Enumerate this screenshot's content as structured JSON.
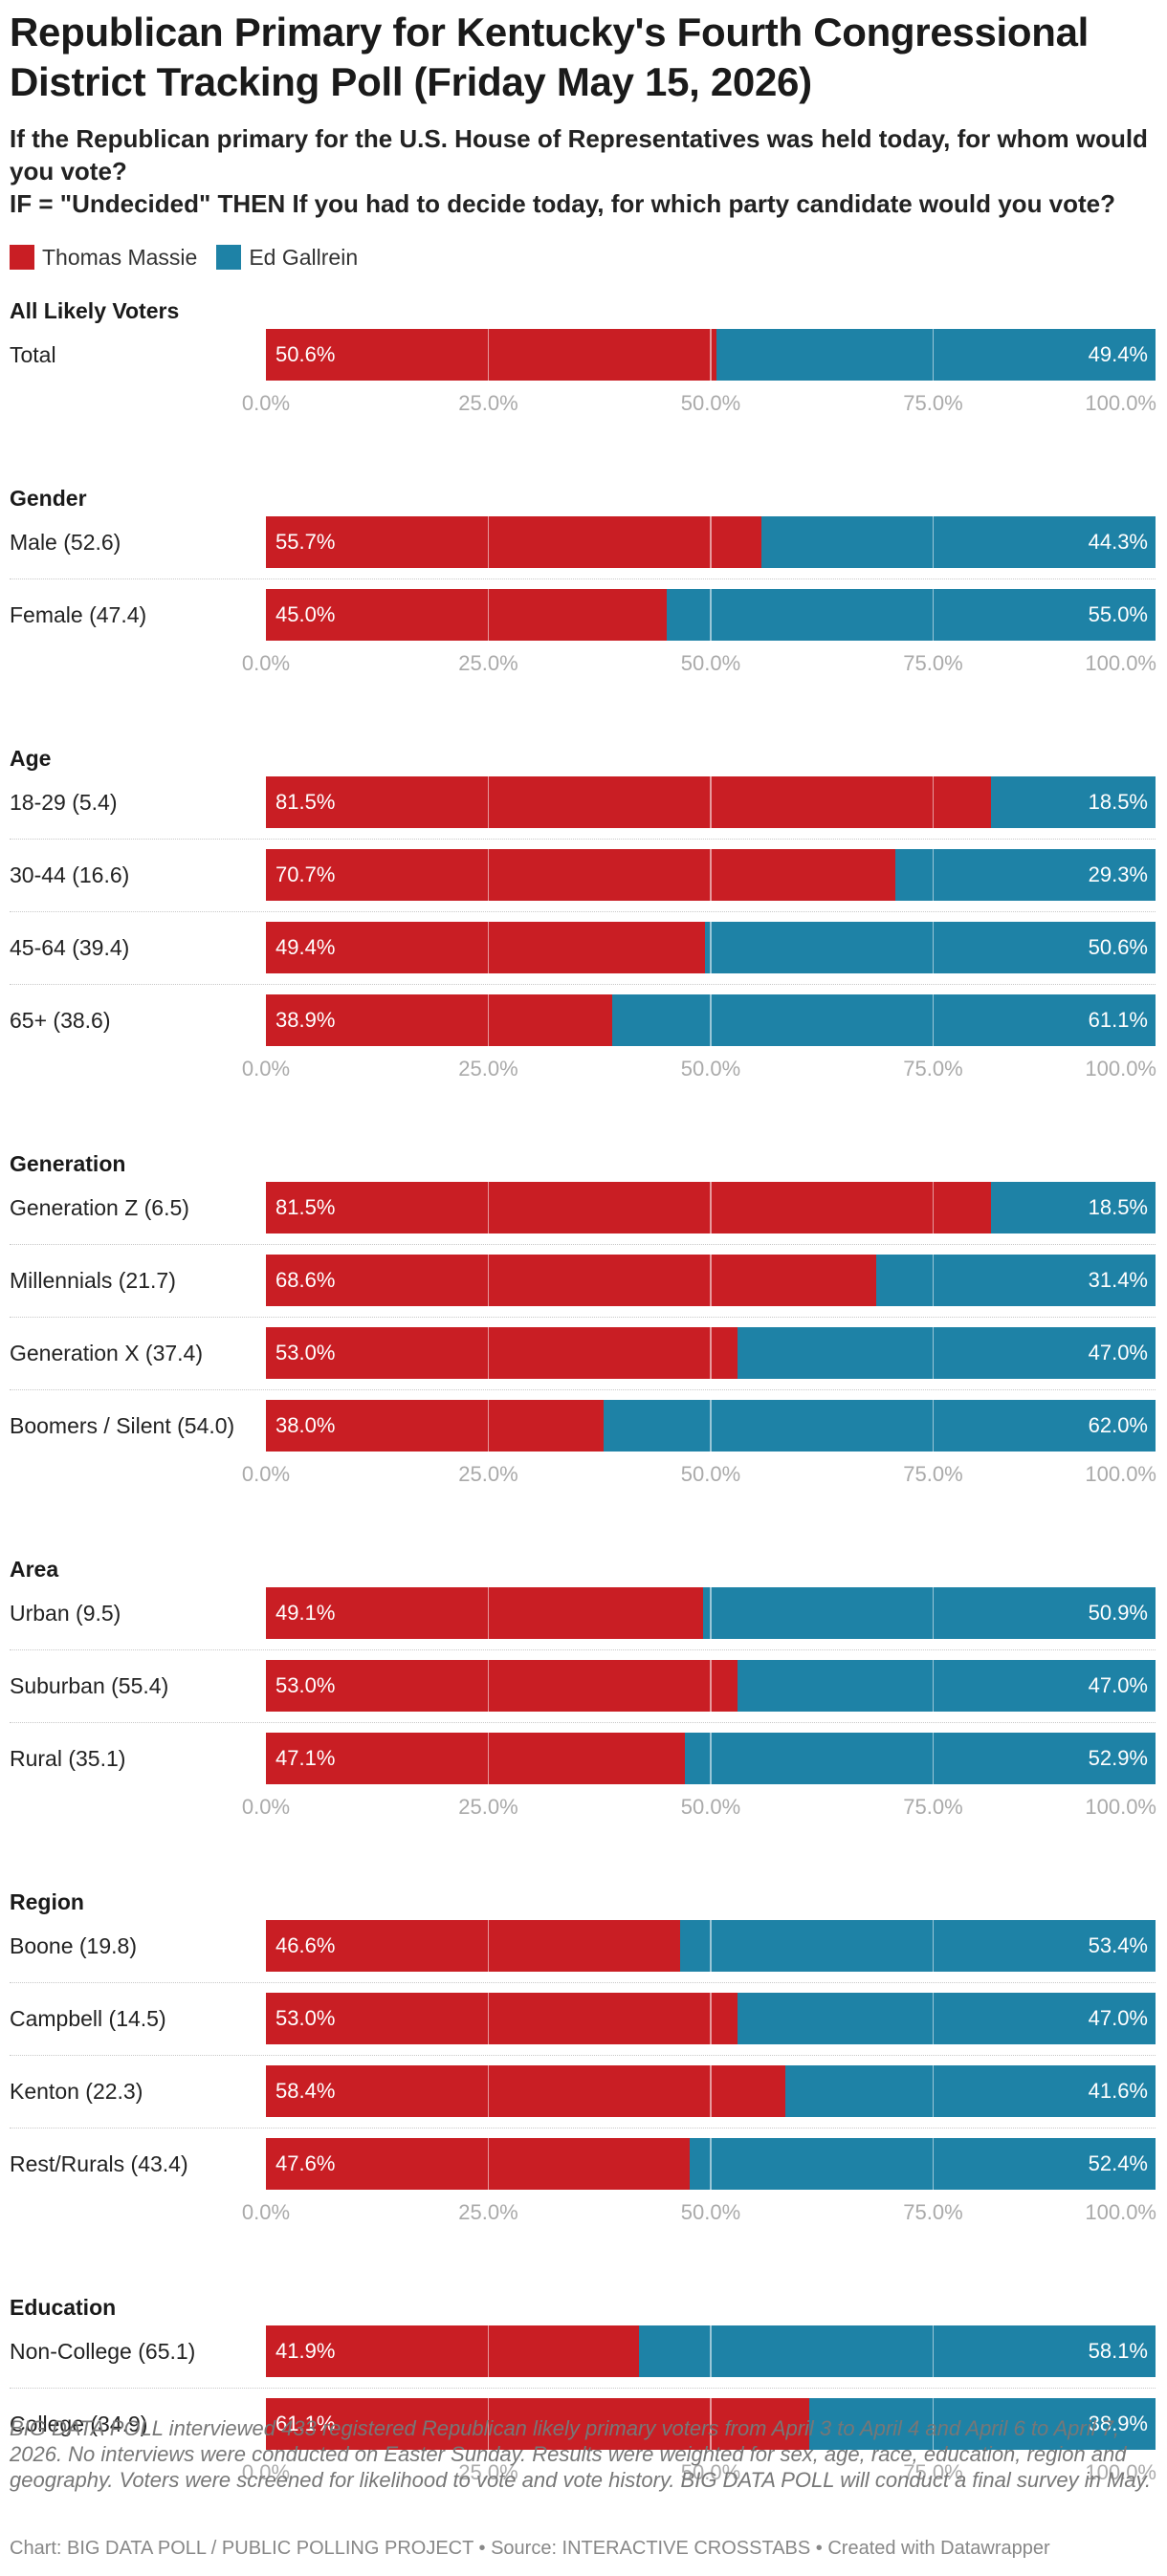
{
  "title": "Republican Primary for Kentucky's Fourth Congressional District Tracking Poll (Friday May 15, 2026)",
  "subtitle_line1": "If the Republican primary for the U.S. House of Representatives was held today, for whom would you vote?",
  "subtitle_line2": "IF = \"Undecided\" THEN If you had to decide today, for which party candidate would you vote?",
  "notes": "BIG DATA POLL interviewed 433 registered Republican likely primary voters from April 3 to April 4 and April 6 to April 7, 2026. No interviews were conducted on Easter Sunday. Results were weighted for sex, age, race, education, region and geography. Voters were screened for likelihood to vote and vote history. BIG DATA POLL will conduct a final survey in May.",
  "footer": "Chart: BIG DATA POLL / PUBLIC POLLING PROJECT • Source: INTERACTIVE CROSSTABS • Created with Datawrapper",
  "colors": {
    "massie": "#c91e24",
    "gallrein": "#1e82a6"
  },
  "chart_data": {
    "type": "bar",
    "stacked": true,
    "orientation": "horizontal",
    "xlim": [
      0,
      100
    ],
    "x_ticks": [
      "0.0%",
      "25.0%",
      "50.0%",
      "75.0%",
      "100.0%"
    ],
    "series": [
      {
        "name": "Thomas Massie",
        "color": "#c91e24"
      },
      {
        "name": "Ed Gallrein",
        "color": "#1e82a6"
      }
    ],
    "groups": [
      {
        "title": "All Likely Voters",
        "rows": [
          {
            "label": "Total",
            "values": [
              50.6,
              49.4
            ],
            "labels": [
              "50.6%",
              "49.4%"
            ]
          }
        ]
      },
      {
        "title": "Gender",
        "rows": [
          {
            "label": "Male (52.6)",
            "values": [
              55.7,
              44.3
            ],
            "labels": [
              "55.7%",
              "44.3%"
            ]
          },
          {
            "label": "Female (47.4)",
            "values": [
              45.0,
              55.0
            ],
            "labels": [
              "45.0%",
              "55.0%"
            ]
          }
        ]
      },
      {
        "title": "Age",
        "rows": [
          {
            "label": "18-29 (5.4)",
            "values": [
              81.5,
              18.5
            ],
            "labels": [
              "81.5%",
              "18.5%"
            ]
          },
          {
            "label": "30-44 (16.6)",
            "values": [
              70.7,
              29.3
            ],
            "labels": [
              "70.7%",
              "29.3%"
            ]
          },
          {
            "label": "45-64 (39.4)",
            "values": [
              49.4,
              50.6
            ],
            "labels": [
              "49.4%",
              "50.6%"
            ]
          },
          {
            "label": "65+ (38.6)",
            "values": [
              38.9,
              61.1
            ],
            "labels": [
              "38.9%",
              "61.1%"
            ]
          }
        ]
      },
      {
        "title": "Generation",
        "rows": [
          {
            "label": "Generation Z (6.5)",
            "values": [
              81.5,
              18.5
            ],
            "labels": [
              "81.5%",
              "18.5%"
            ]
          },
          {
            "label": "Millennials (21.7)",
            "values": [
              68.6,
              31.4
            ],
            "labels": [
              "68.6%",
              "31.4%"
            ]
          },
          {
            "label": "Generation X (37.4)",
            "values": [
              53.0,
              47.0
            ],
            "labels": [
              "53.0%",
              "47.0%"
            ]
          },
          {
            "label": "Boomers / Silent (54.0)",
            "values": [
              38.0,
              62.0
            ],
            "labels": [
              "38.0%",
              "62.0%"
            ]
          }
        ]
      },
      {
        "title": "Area",
        "rows": [
          {
            "label": "Urban (9.5)",
            "values": [
              49.1,
              50.9
            ],
            "labels": [
              "49.1%",
              "50.9%"
            ]
          },
          {
            "label": "Suburban (55.4)",
            "values": [
              53.0,
              47.0
            ],
            "labels": [
              "53.0%",
              "47.0%"
            ]
          },
          {
            "label": "Rural (35.1)",
            "values": [
              47.1,
              52.9
            ],
            "labels": [
              "47.1%",
              "52.9%"
            ]
          }
        ]
      },
      {
        "title": "Region",
        "rows": [
          {
            "label": "Boone (19.8)",
            "values": [
              46.6,
              53.4
            ],
            "labels": [
              "46.6%",
              "53.4%"
            ]
          },
          {
            "label": "Campbell (14.5)",
            "values": [
              53.0,
              47.0
            ],
            "labels": [
              "53.0%",
              "47.0%"
            ]
          },
          {
            "label": "Kenton (22.3)",
            "values": [
              58.4,
              41.6
            ],
            "labels": [
              "58.4%",
              "41.6%"
            ]
          },
          {
            "label": "Rest/Rurals (43.4)",
            "values": [
              47.6,
              52.4
            ],
            "labels": [
              "47.6%",
              "52.4%"
            ]
          }
        ]
      },
      {
        "title": "Education",
        "rows": [
          {
            "label": "Non-College (65.1)",
            "values": [
              41.9,
              58.1
            ],
            "labels": [
              "41.9%",
              "58.1%"
            ]
          },
          {
            "label": "College (34.9)",
            "values": [
              61.1,
              38.9
            ],
            "labels": [
              "61.1%",
              "38.9%"
            ]
          }
        ]
      }
    ]
  }
}
